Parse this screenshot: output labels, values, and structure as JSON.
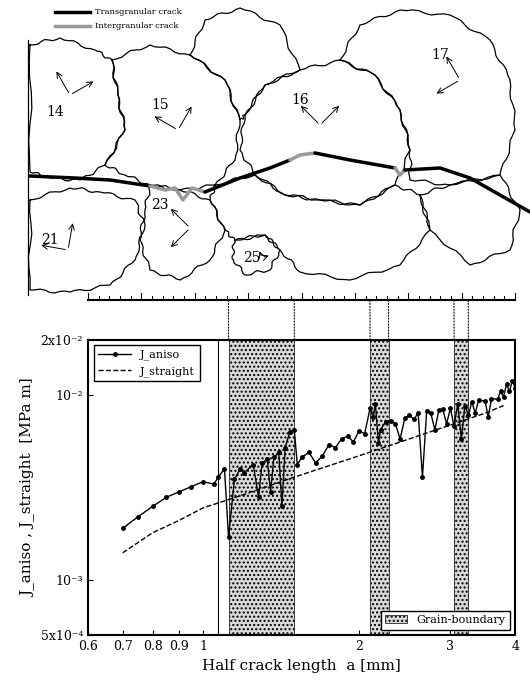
{
  "chart_data": {
    "type": "line",
    "x_label": "Half crack length  a [mm]",
    "y_label": "J_aniso , J_straight  [MPa m]",
    "log": true,
    "xlim": [
      0.6,
      4
    ],
    "ylim": [
      0.0005,
      0.02
    ],
    "xticks": [
      0.6,
      0.7,
      0.8,
      0.9,
      1,
      2,
      3,
      4
    ],
    "yticks": [
      {
        "value": 0.0005,
        "label": "5x10⁻⁴"
      },
      {
        "value": 0.001,
        "label": "10⁻³"
      },
      {
        "value": 0.01,
        "label": "10⁻²"
      },
      {
        "value": 0.02,
        "label": "2x10⁻²"
      }
    ],
    "legend": "upper left",
    "series": [
      {
        "name": "J_aniso",
        "color": "#000000",
        "line_style": "solid",
        "marker": "o",
        "x": [
          0.7,
          0.75,
          0.8,
          0.85,
          0.9,
          0.95,
          1.0,
          1.05,
          1.07,
          1.1,
          1.12,
          1.15,
          1.18,
          1.2,
          1.25,
          1.28,
          1.3,
          1.33,
          1.35,
          1.37,
          1.4,
          1.42,
          1.44,
          1.47,
          1.5,
          1.52,
          1.55,
          1.6,
          1.65,
          1.7,
          1.75,
          1.8,
          1.85,
          1.9,
          1.95,
          2.0,
          2.05,
          2.1,
          2.13,
          2.15,
          2.18,
          2.2,
          2.25,
          2.3,
          2.35,
          2.4,
          2.45,
          2.5,
          2.55,
          2.6,
          2.65,
          2.7,
          2.75,
          2.8,
          2.85,
          2.9,
          2.95,
          3.0,
          3.05,
          3.1,
          3.15,
          3.2,
          3.25,
          3.3,
          3.35,
          3.4,
          3.5,
          3.55,
          3.6,
          3.7,
          3.75,
          3.8,
          3.85,
          3.9,
          3.95,
          4.0
        ],
        "values": [
          0.0019,
          0.0022,
          0.0025,
          0.0028,
          0.003,
          0.0032,
          0.0034,
          0.0033,
          0.0036,
          0.004,
          0.0017,
          0.0035,
          0.004,
          0.0038,
          0.0042,
          0.0028,
          0.0043,
          0.0045,
          0.003,
          0.0046,
          0.0049,
          0.0025,
          0.0052,
          0.0063,
          0.0065,
          0.0042,
          0.0046,
          0.0049,
          0.0043,
          0.0047,
          0.0054,
          0.0052,
          0.0058,
          0.006,
          0.0056,
          0.0064,
          0.0062,
          0.0085,
          0.0076,
          0.009,
          0.0055,
          0.0065,
          0.0072,
          0.0073,
          0.007,
          0.0058,
          0.0075,
          0.0078,
          0.0074,
          0.008,
          0.0036,
          0.0082,
          0.008,
          0.0065,
          0.0083,
          0.0084,
          0.007,
          0.0085,
          0.0068,
          0.009,
          0.0058,
          0.0088,
          0.0078,
          0.0092,
          0.008,
          0.0094,
          0.0093,
          0.0076,
          0.0096,
          0.0095,
          0.0105,
          0.0098,
          0.0115,
          0.0105,
          0.012,
          0.011
        ]
      },
      {
        "name": "J_straight",
        "color": "#000000",
        "line_style": "dashed",
        "marker": "none",
        "x": [
          0.7,
          0.8,
          0.9,
          1.0,
          1.2,
          1.5,
          2.0,
          2.5,
          3.0,
          3.5,
          3.8
        ],
        "values": [
          0.0014,
          0.0018,
          0.0021,
          0.00245,
          0.0029,
          0.0036,
          0.0047,
          0.0058,
          0.0069,
          0.008,
          0.0088
        ]
      }
    ],
    "grain_boundary": {
      "label": "Grain-boundary",
      "color": "#d9d9d9",
      "ranges": [
        [
          1.12,
          1.5
        ],
        [
          2.1,
          2.28
        ],
        [
          3.05,
          3.25
        ]
      ]
    },
    "boundary_line_x": 1.07
  },
  "diagram": {
    "legend": [
      {
        "label": "Transgranular crack",
        "color": "#000000"
      },
      {
        "label": "Intergranular crack",
        "color": "#999999"
      }
    ],
    "grains": [
      "14",
      "15",
      "16",
      "17",
      "21",
      "23",
      "25"
    ]
  }
}
